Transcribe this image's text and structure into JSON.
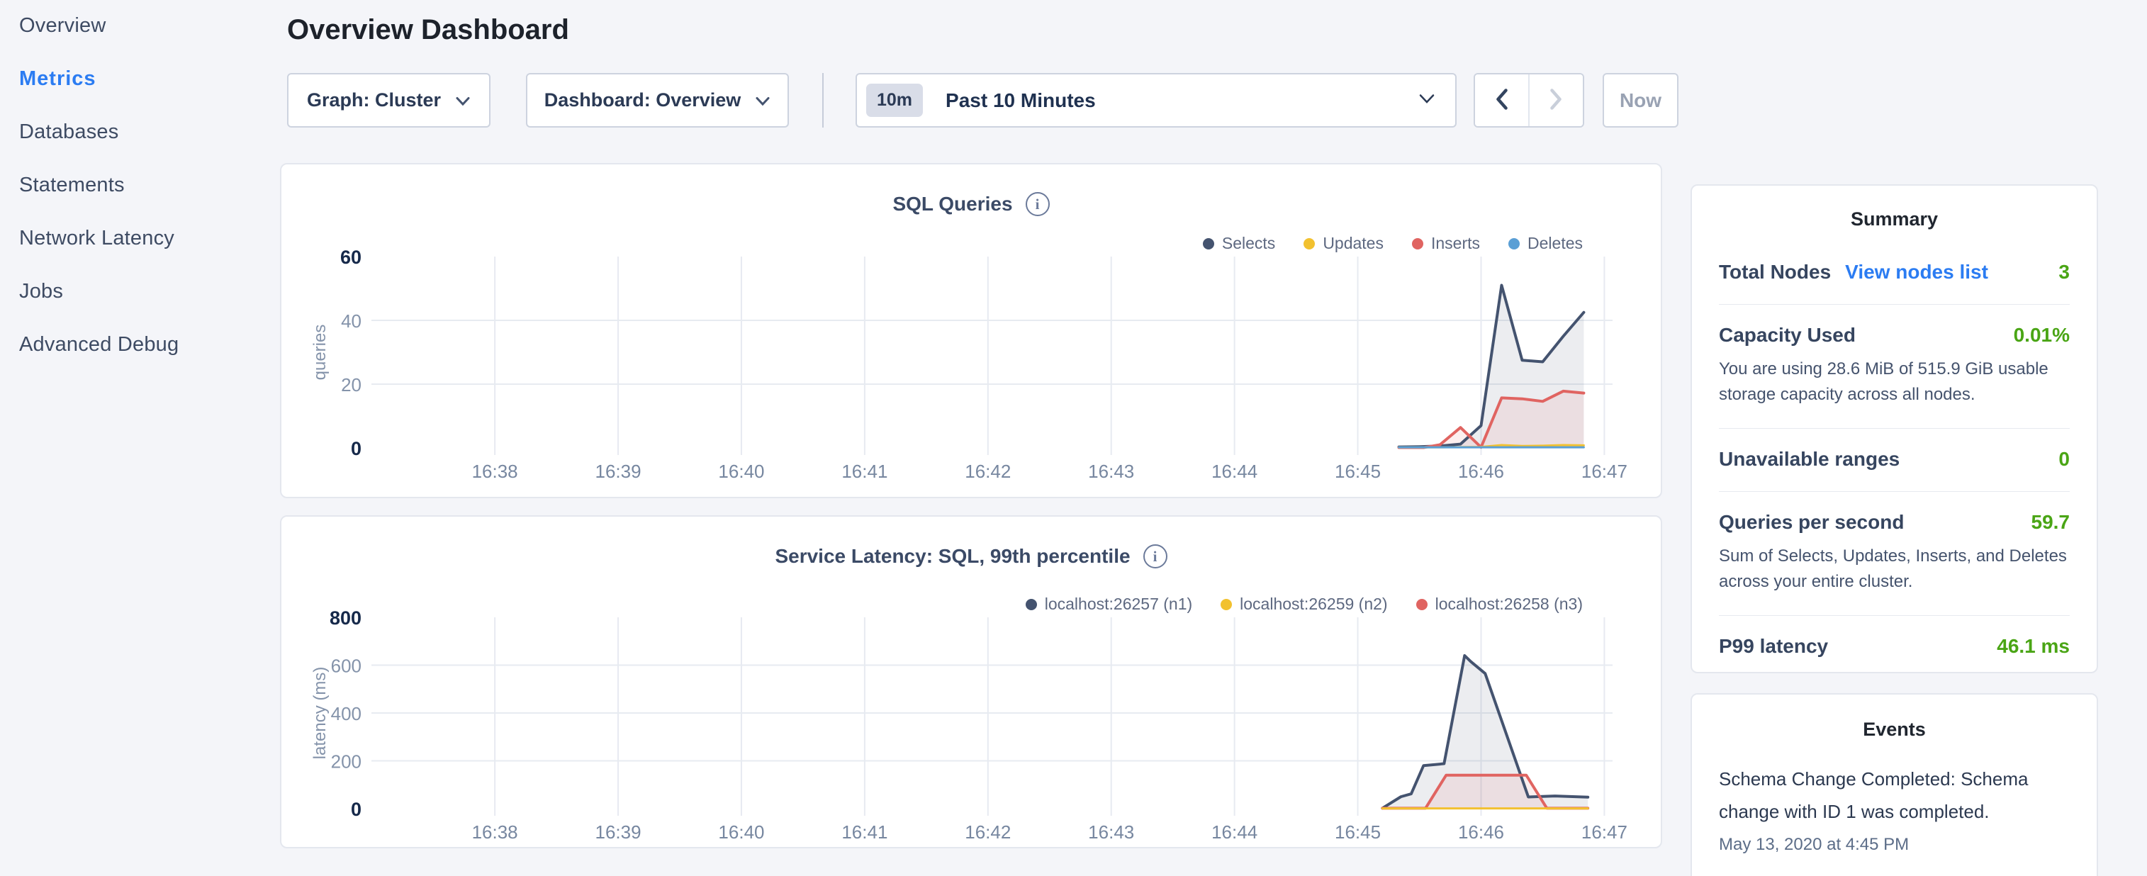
{
  "sidebar": {
    "items": [
      {
        "label": "Overview",
        "active": false
      },
      {
        "label": "Metrics",
        "active": true
      },
      {
        "label": "Databases",
        "active": false
      },
      {
        "label": "Statements",
        "active": false
      },
      {
        "label": "Network Latency",
        "active": false
      },
      {
        "label": "Jobs",
        "active": false
      },
      {
        "label": "Advanced Debug",
        "active": false
      }
    ]
  },
  "header": {
    "title": "Overview Dashboard"
  },
  "controls": {
    "graph_dropdown": {
      "label": "Graph: Cluster"
    },
    "dashboard_dropdown": {
      "label": "Dashboard: Overview"
    },
    "time_window": {
      "badge": "10m",
      "label": "Past 10 Minutes"
    },
    "now_button": "Now"
  },
  "chart_data": [
    {
      "type": "line",
      "title": "SQL Queries",
      "ylabel": "queries",
      "ylim": [
        0,
        60
      ],
      "x_range_seconds": [
        -58,
        544
      ],
      "grid": true,
      "legend_position": "top-right",
      "xticks": [
        {
          "x": 0,
          "label": "16:38"
        },
        {
          "x": 60,
          "label": "16:39"
        },
        {
          "x": 120,
          "label": "16:40"
        },
        {
          "x": 180,
          "label": "16:41"
        },
        {
          "x": 240,
          "label": "16:42"
        },
        {
          "x": 300,
          "label": "16:43"
        },
        {
          "x": 360,
          "label": "16:44"
        },
        {
          "x": 420,
          "label": "16:45"
        },
        {
          "x": 480,
          "label": "16:46"
        },
        {
          "x": 540,
          "label": "16:47"
        }
      ],
      "yticks": [
        {
          "v": 0,
          "label": "0",
          "bold": true
        },
        {
          "v": 20,
          "label": "20",
          "grid": true
        },
        {
          "v": 40,
          "label": "40",
          "grid": true
        },
        {
          "v": 60,
          "label": "60",
          "bold": true
        }
      ],
      "legend": [
        {
          "label": "Selects",
          "color": "#44536f"
        },
        {
          "label": "Updates",
          "color": "#f2c12f"
        },
        {
          "label": "Inserts",
          "color": "#e06461"
        },
        {
          "label": "Deletes",
          "color": "#5a9fd5"
        }
      ],
      "series": [
        {
          "name": "Selects",
          "color": "#44536f",
          "width": 4,
          "fill": "rgba(68,83,111,0.10)",
          "points": [
            [
              440,
              0.3
            ],
            [
              450,
              0.4
            ],
            [
              460,
              0.6
            ],
            [
              470,
              1.2
            ],
            [
              480,
              7
            ],
            [
              490,
              51
            ],
            [
              500,
              27.5
            ],
            [
              510,
              27
            ],
            [
              520,
              35
            ],
            [
              530,
              42.5
            ]
          ]
        },
        {
          "name": "Inserts",
          "color": "#e06461",
          "width": 4,
          "fill": "rgba(224,100,97,0.10)",
          "points": [
            [
              440,
              0.1
            ],
            [
              452,
              0.1
            ],
            [
              460,
              1
            ],
            [
              470,
              6.4
            ],
            [
              480,
              0.2
            ],
            [
              490,
              15.7
            ],
            [
              500,
              15.4
            ],
            [
              510,
              14.6
            ],
            [
              520,
              17.8
            ],
            [
              530,
              17.2
            ]
          ]
        },
        {
          "name": "Updates",
          "color": "#f2c12f",
          "width": 3,
          "points": [
            [
              440,
              0.2
            ],
            [
              460,
              0.2
            ],
            [
              480,
              0.3
            ],
            [
              490,
              0.9
            ],
            [
              500,
              0.6
            ],
            [
              510,
              0.7
            ],
            [
              520,
              0.9
            ],
            [
              530,
              0.8
            ]
          ]
        },
        {
          "name": "Deletes",
          "color": "#5a9fd5",
          "width": 3,
          "points": [
            [
              440,
              0.2
            ],
            [
              530,
              0.2
            ]
          ]
        }
      ]
    },
    {
      "type": "line",
      "title": "Service Latency: SQL, 99th percentile",
      "ylabel": "latency (ms)",
      "ylim": [
        0,
        800
      ],
      "x_range_seconds": [
        -58,
        544
      ],
      "grid": true,
      "legend_position": "top-right",
      "xticks": [
        {
          "x": 0,
          "label": "16:38"
        },
        {
          "x": 60,
          "label": "16:39"
        },
        {
          "x": 120,
          "label": "16:40"
        },
        {
          "x": 180,
          "label": "16:41"
        },
        {
          "x": 240,
          "label": "16:42"
        },
        {
          "x": 300,
          "label": "16:43"
        },
        {
          "x": 360,
          "label": "16:44"
        },
        {
          "x": 420,
          "label": "16:45"
        },
        {
          "x": 480,
          "label": "16:46"
        },
        {
          "x": 540,
          "label": "16:47"
        }
      ],
      "yticks": [
        {
          "v": 0,
          "label": "0",
          "bold": true
        },
        {
          "v": 200,
          "label": "200",
          "grid": true
        },
        {
          "v": 400,
          "label": "400",
          "grid": true
        },
        {
          "v": 600,
          "label": "600",
          "grid": true
        },
        {
          "v": 800,
          "label": "800",
          "bold": true
        }
      ],
      "legend": [
        {
          "label": "localhost:26257 (n1)",
          "color": "#44536f"
        },
        {
          "label": "localhost:26259 (n2)",
          "color": "#f2c12f"
        },
        {
          "label": "localhost:26258 (n3)",
          "color": "#e06461"
        }
      ],
      "series": [
        {
          "name": "localhost:26257 (n1)",
          "color": "#44536f",
          "width": 4,
          "fill": "rgba(68,83,111,0.10)",
          "points": [
            [
              432,
              2
            ],
            [
              441,
              50
            ],
            [
              446,
              62
            ],
            [
              452,
              180
            ],
            [
              462,
              188
            ],
            [
              472,
              640
            ],
            [
              475,
              615
            ],
            [
              482,
              565
            ],
            [
              503,
              49
            ],
            [
              516,
              53
            ],
            [
              532,
              48
            ]
          ]
        },
        {
          "name": "localhost:26258 (n3)",
          "color": "#e06461",
          "width": 4,
          "fill": "rgba(224,100,97,0.10)",
          "points": [
            [
              432,
              2
            ],
            [
              453,
              2
            ],
            [
              463,
              140
            ],
            [
              502,
              140
            ],
            [
              512,
              2
            ],
            [
              532,
              2
            ]
          ]
        },
        {
          "name": "localhost:26259 (n2)",
          "color": "#f2c12f",
          "width": 3,
          "points": [
            [
              432,
              1
            ],
            [
              532,
              1
            ]
          ]
        }
      ]
    }
  ],
  "summary": {
    "title": "Summary",
    "total_nodes": {
      "label": "Total Nodes",
      "link": "View nodes list",
      "value": "3"
    },
    "capacity": {
      "label": "Capacity Used",
      "value": "0.01%",
      "description": "You are using 28.6 MiB of 515.9 GiB usable storage capacity across all nodes."
    },
    "unavailable": {
      "label": "Unavailable ranges",
      "value": "0"
    },
    "qps": {
      "label": "Queries per second",
      "value": "59.7",
      "description": "Sum of Selects, Updates, Inserts, and Deletes across your entire cluster."
    },
    "p99": {
      "label": "P99 latency",
      "value": "46.1 ms"
    }
  },
  "events": {
    "title": "Events",
    "items": [
      {
        "message": "Schema Change Completed: Schema change with ID 1 was completed.",
        "timestamp": "May 13, 2020 at 4:45 PM"
      }
    ]
  },
  "colors": {
    "accent_blue": "#2b7cf2",
    "value_green": "#4aa515",
    "series_navy": "#44536f",
    "series_yellow": "#f2c12f",
    "series_red": "#e06461",
    "series_blue": "#5a9fd5"
  }
}
